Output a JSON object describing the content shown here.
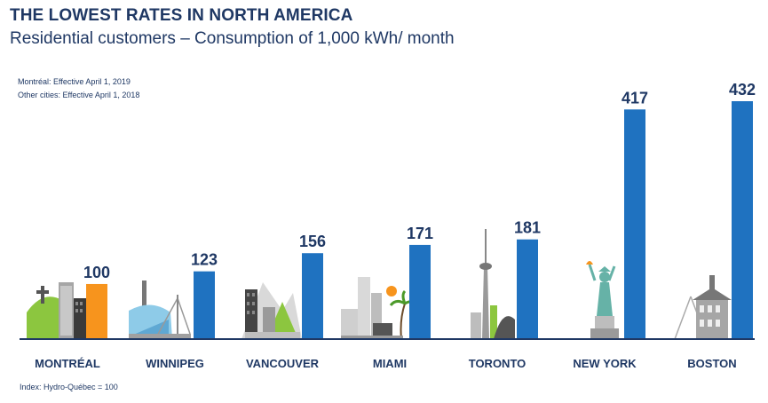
{
  "chart_data": {
    "type": "bar",
    "title": "THE LOWEST RATES IN NORTH AMERICA",
    "subtitle": "Residential customers – Consumption of 1,000 kWh/ month",
    "notes": [
      "Montréal: Effective April 1, 2019",
      "Other cities: Effective April 1, 2018"
    ],
    "footnote": "Index: Hydro-Québec = 100",
    "categories": [
      "MONTRÉAL",
      "WINNIPEG",
      "VANCOUVER",
      "MIAMI",
      "TORONTO",
      "NEW YORK",
      "BOSTON"
    ],
    "values": [
      100,
      123,
      156,
      171,
      181,
      417,
      432
    ],
    "value_labels": [
      "100",
      "123",
      "156",
      "171",
      "181",
      "417",
      "432"
    ],
    "ylim": [
      0,
      432
    ],
    "grid": false,
    "colors": {
      "highlight_bar": "#f7941d",
      "bar": "#1f72c0",
      "text": "#1f3864",
      "baseline": "#1f3864"
    },
    "icons": [
      "montreal-skyline-icon",
      "winnipeg-skyline-icon",
      "vancouver-skyline-icon",
      "miami-skyline-icon",
      "toronto-skyline-icon",
      "new-york-statue-of-liberty-icon",
      "boston-skyline-icon"
    ]
  }
}
